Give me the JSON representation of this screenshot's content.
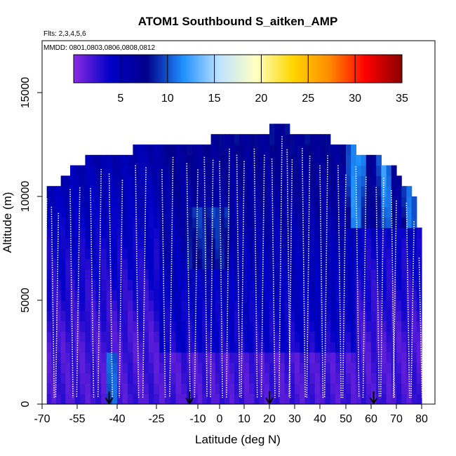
{
  "chart_data": {
    "type": "heatmap",
    "title": "ATOM1 Southbound S_aitken_AMP",
    "subtitle_flights": "Flts: 2,3,4,5,6",
    "subtitle_dates": "MMDD: 0801,0803,0806,0808,0812",
    "xlabel": "Latitude (deg N)",
    "ylabel": "Altitude (m)",
    "xlim": [
      -70,
      85
    ],
    "ylim": [
      0,
      17500
    ],
    "x_ticks": [
      -70,
      -55,
      -40,
      -25,
      -10,
      0,
      10,
      20,
      30,
      40,
      50,
      60,
      70,
      80
    ],
    "y_ticks": [
      0,
      5000,
      10000,
      15000
    ],
    "colorbar": {
      "min": 0,
      "max": 35,
      "ticks": [
        5,
        10,
        15,
        20,
        25,
        30,
        35
      ],
      "colors": [
        "#8a2be2",
        "#0000c8",
        "#00008b",
        "#1e90ff",
        "#bfe3ff",
        "#ffffc0",
        "#ffd700",
        "#ff8c00",
        "#ff0000",
        "#8b0000"
      ]
    },
    "grid": false,
    "profile_top_altitudes": [
      {
        "lat": -68,
        "alt": 10500
      },
      {
        "lat": -64,
        "alt": 10300
      },
      {
        "lat": -60,
        "alt": 10700
      },
      {
        "lat": -56,
        "alt": 11200
      },
      {
        "lat": -50,
        "alt": 11600
      },
      {
        "lat": -45,
        "alt": 12000
      },
      {
        "lat": -35,
        "alt": 12000
      },
      {
        "lat": -25,
        "alt": 12500
      },
      {
        "lat": -15,
        "alt": 12500
      },
      {
        "lat": -5,
        "alt": 12500
      },
      {
        "lat": 0,
        "alt": 12900
      },
      {
        "lat": 10,
        "alt": 12900
      },
      {
        "lat": 20,
        "alt": 12900
      },
      {
        "lat": 25,
        "alt": 13500
      },
      {
        "lat": 28,
        "alt": 13000
      },
      {
        "lat": 35,
        "alt": 12900
      },
      {
        "lat": 45,
        "alt": 12500
      },
      {
        "lat": 55,
        "alt": 12000
      },
      {
        "lat": 65,
        "alt": 11500
      },
      {
        "lat": 70,
        "alt": 11000
      },
      {
        "lat": 74,
        "alt": 10300
      },
      {
        "lat": 78,
        "alt": 9500
      },
      {
        "lat": 80,
        "alt": 7000
      }
    ],
    "profile_latitudes": [
      -68,
      -66,
      -63,
      -58,
      -54,
      -50,
      -46,
      -43,
      -38,
      -33,
      -29,
      -23,
      -19,
      -14,
      -10,
      -7,
      -3,
      0,
      4,
      7,
      10,
      14,
      18,
      21,
      25,
      27,
      29,
      33,
      36,
      40,
      43,
      47,
      50,
      54,
      58,
      62,
      65,
      68,
      70,
      74,
      77,
      79
    ],
    "arrow_latitudes": [
      -43,
      -13,
      20,
      61
    ]
  }
}
